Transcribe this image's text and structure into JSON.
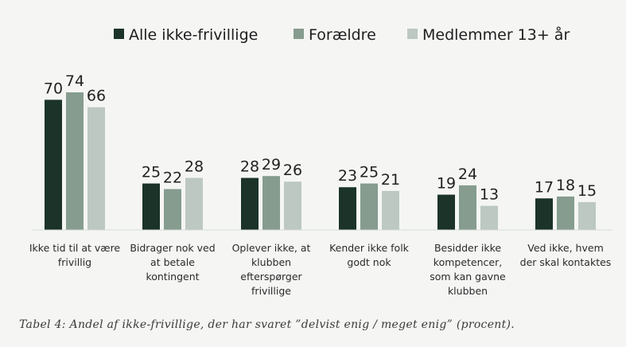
{
  "chart_data": {
    "type": "bar",
    "title": "",
    "xlabel": "",
    "ylabel": "",
    "ylim": [
      0,
      80
    ],
    "grid": false,
    "legend_position": "top",
    "categories": [
      "Ikke tid til at være frivillig",
      "Bidrager nok ved at betale kontingent",
      "Oplever ikke, at klubben efterspørger frivillige",
      "Kender ikke folk godt nok",
      "Besidder ikke kompetencer, som kan gavne klubben",
      "Ved ikke, hvem der skal kontaktes"
    ],
    "category_lines": [
      [
        "Ikke tid til at være",
        "frivillig"
      ],
      [
        "Bidrager nok ved",
        "at betale",
        "kontingent"
      ],
      [
        "Oplever ikke, at",
        "klubben",
        "efterspørger",
        "frivillige"
      ],
      [
        "Kender ikke folk",
        "godt nok"
      ],
      [
        "Besidder ikke",
        "kompetencer,",
        "som kan gavne",
        "klubben"
      ],
      [
        "Ved ikke, hvem",
        "der skal kontaktes"
      ]
    ],
    "series": [
      {
        "name": "Alle ikke-frivillige",
        "color": "#1b3329",
        "values": [
          70,
          25,
          28,
          23,
          19,
          17
        ]
      },
      {
        "name": "Forældre",
        "color": "#859c8f",
        "values": [
          74,
          22,
          29,
          25,
          24,
          18
        ]
      },
      {
        "name": "Medlemmer 13+ år",
        "color": "#bcc8c1",
        "values": [
          66,
          28,
          26,
          21,
          13,
          15
        ]
      }
    ]
  },
  "caption": "Tabel 4: Andel af ikke-frivillige, der har svaret ”delvist enig / meget enig” (procent)."
}
